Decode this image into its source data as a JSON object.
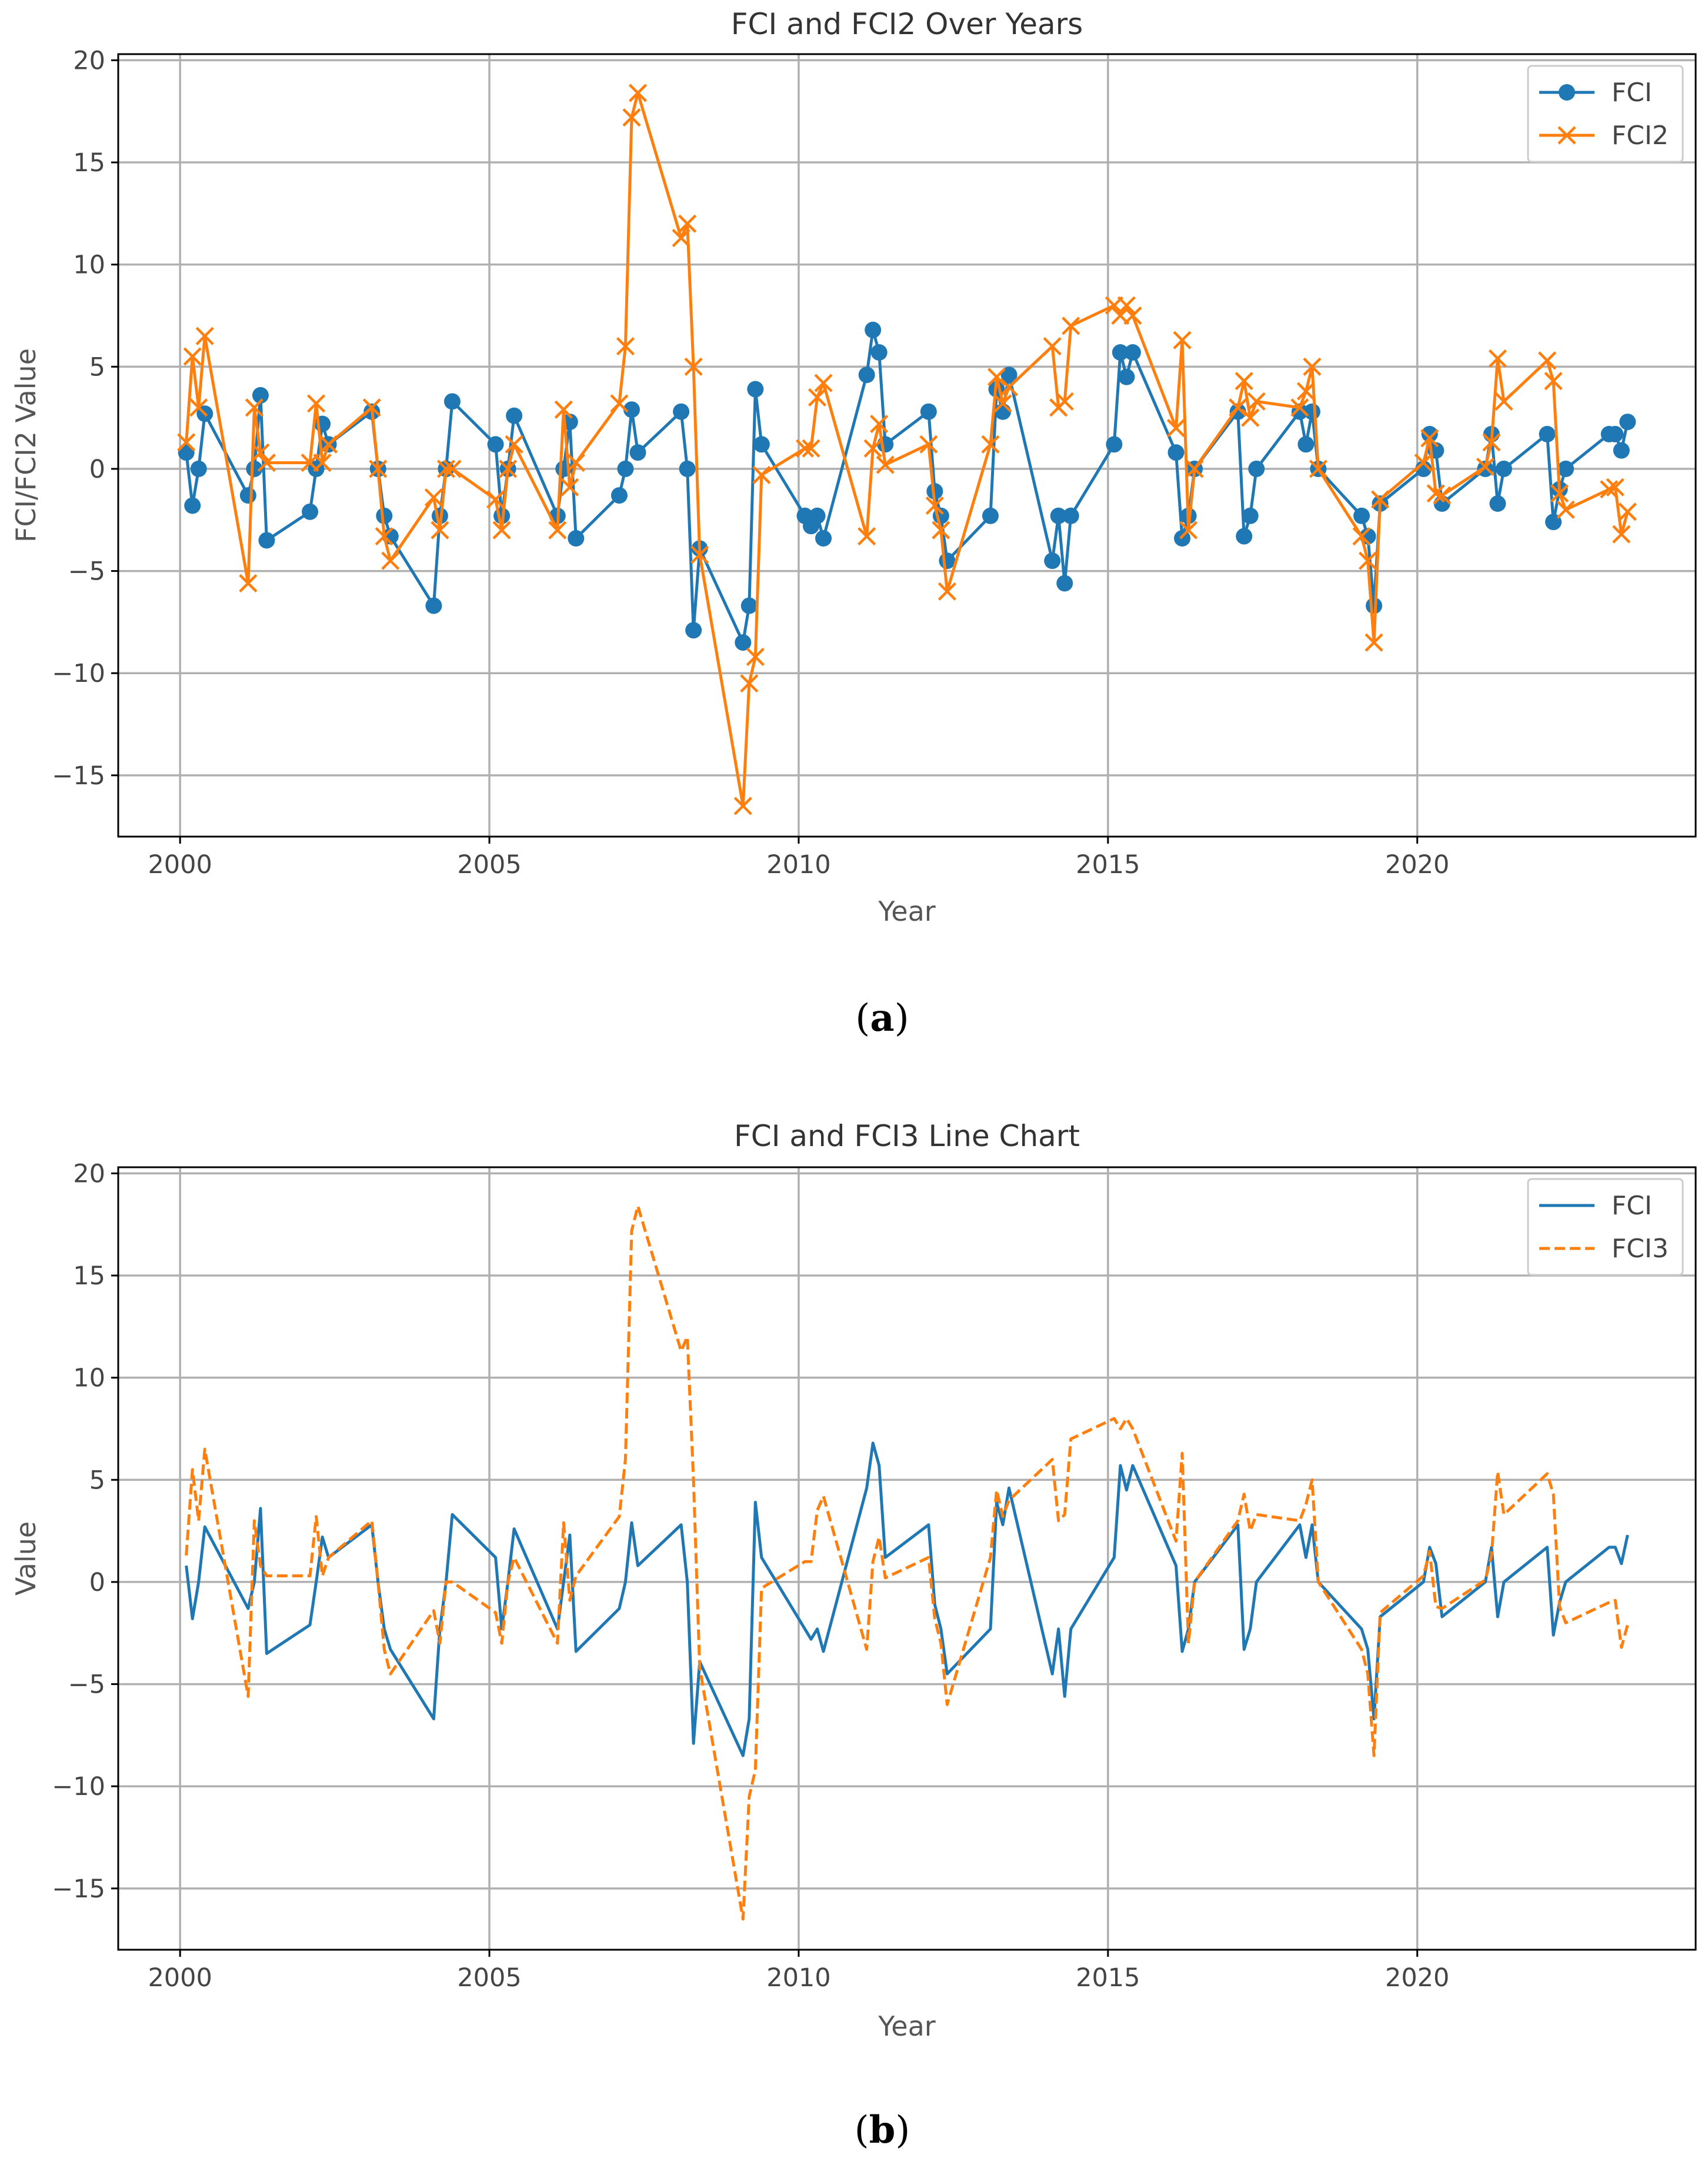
{
  "chart_data": [
    {
      "type": "line",
      "title": "FCI and FCI2 Over Years",
      "xlabel": "Year",
      "ylabel": "FCI/FCI2 Value",
      "xlim": [
        1999.0,
        2024.5
      ],
      "ylim": [
        -18.0,
        20.3
      ],
      "xticks": [
        2000,
        2005,
        2010,
        2015,
        2020
      ],
      "yticks": [
        -15,
        -10,
        -5,
        0,
        5,
        10,
        15,
        20
      ],
      "grid": true,
      "legend_position": "top-right",
      "caption_letter": "a",
      "series": [
        {
          "name": "FCI",
          "color": "#1f77b4",
          "marker": "circle",
          "linestyle": "solid",
          "x": [
            2000.1,
            2000.2,
            2000.3,
            2000.4,
            2001.1,
            2001.2,
            2001.3,
            2001.4,
            2002.1,
            2002.2,
            2002.3,
            2002.4,
            2003.1,
            2003.2,
            2003.3,
            2003.4,
            2004.1,
            2004.2,
            2004.3,
            2004.4,
            2005.1,
            2005.2,
            2005.3,
            2005.4,
            2006.1,
            2006.2,
            2006.3,
            2006.4,
            2007.1,
            2007.2,
            2007.3,
            2007.4,
            2008.1,
            2008.2,
            2008.3,
            2008.4,
            2009.1,
            2009.2,
            2009.3,
            2009.4,
            2010.1,
            2010.2,
            2010.3,
            2010.4,
            2011.1,
            2011.2,
            2011.3,
            2011.4,
            2012.1,
            2012.2,
            2012.3,
            2012.4,
            2013.1,
            2013.2,
            2013.3,
            2013.4,
            2014.1,
            2014.2,
            2014.3,
            2014.4,
            2015.1,
            2015.2,
            2015.3,
            2015.4,
            2016.1,
            2016.2,
            2016.3,
            2016.4,
            2017.1,
            2017.2,
            2017.3,
            2017.4,
            2018.1,
            2018.2,
            2018.3,
            2018.4,
            2019.1,
            2019.2,
            2019.3,
            2019.4,
            2020.1,
            2020.2,
            2020.3,
            2020.4,
            2021.1,
            2021.2,
            2021.3,
            2021.4,
            2022.1,
            2022.2,
            2022.3,
            2022.4,
            2023.1,
            2023.2,
            2023.3,
            2023.4
          ],
          "values": [
            0.8,
            -1.8,
            0.0,
            2.7,
            -1.3,
            0.0,
            3.6,
            -3.5,
            -2.1,
            0.0,
            2.2,
            1.2,
            2.8,
            0.0,
            -2.3,
            -3.3,
            -6.7,
            -2.3,
            0.0,
            3.3,
            1.2,
            -2.3,
            0.0,
            2.6,
            -2.3,
            0.0,
            2.3,
            -3.4,
            -1.3,
            0.0,
            2.9,
            0.8,
            2.8,
            0.0,
            -7.9,
            -3.9,
            -8.5,
            -6.7,
            3.9,
            1.2,
            -2.3,
            -2.8,
            -2.3,
            -3.4,
            4.6,
            6.8,
            5.7,
            1.2,
            2.8,
            -1.1,
            -2.3,
            -4.5,
            -2.3,
            3.9,
            2.8,
            4.6,
            -4.5,
            -2.3,
            -5.6,
            -2.3,
            1.2,
            5.7,
            4.5,
            5.7,
            0.8,
            -3.4,
            -2.3,
            0.0,
            2.8,
            -3.3,
            -2.3,
            0.0,
            2.8,
            1.2,
            2.8,
            0.0,
            -2.3,
            -3.3,
            -6.7,
            -1.7,
            0.0,
            1.7,
            0.9,
            -1.7,
            0.0,
            1.7,
            -1.7,
            0.0,
            1.7,
            -2.6,
            -1.0,
            0.0,
            1.7,
            1.7,
            0.9,
            2.3
          ]
        },
        {
          "name": "FCI2",
          "color": "#ff7f0e",
          "marker": "x",
          "linestyle": "solid",
          "x": [
            2000.1,
            2000.2,
            2000.3,
            2000.4,
            2001.1,
            2001.2,
            2001.3,
            2001.4,
            2002.1,
            2002.2,
            2002.3,
            2002.4,
            2003.1,
            2003.2,
            2003.3,
            2003.4,
            2004.1,
            2004.2,
            2004.3,
            2004.4,
            2005.1,
            2005.2,
            2005.3,
            2005.4,
            2006.1,
            2006.2,
            2006.3,
            2006.4,
            2007.1,
            2007.2,
            2007.3,
            2007.4,
            2008.1,
            2008.2,
            2008.3,
            2008.4,
            2009.1,
            2009.2,
            2009.3,
            2009.4,
            2010.1,
            2010.2,
            2010.3,
            2010.4,
            2011.1,
            2011.2,
            2011.3,
            2011.4,
            2012.1,
            2012.2,
            2012.3,
            2012.4,
            2013.1,
            2013.2,
            2013.3,
            2013.4,
            2014.1,
            2014.2,
            2014.3,
            2014.4,
            2015.1,
            2015.2,
            2015.3,
            2015.4,
            2016.1,
            2016.2,
            2016.3,
            2016.4,
            2017.1,
            2017.2,
            2017.3,
            2017.4,
            2018.1,
            2018.2,
            2018.3,
            2018.4,
            2019.1,
            2019.2,
            2019.3,
            2019.4,
            2020.1,
            2020.2,
            2020.3,
            2020.4,
            2021.1,
            2021.2,
            2021.3,
            2021.4,
            2022.1,
            2022.2,
            2022.3,
            2022.4,
            2023.1,
            2023.2,
            2023.3,
            2023.4
          ],
          "values": [
            1.3,
            5.5,
            3.0,
            6.5,
            -5.6,
            3.0,
            0.8,
            0.3,
            0.3,
            3.2,
            0.3,
            1.2,
            3.0,
            0.0,
            -3.3,
            -4.5,
            -1.4,
            -3.0,
            0.0,
            0.0,
            -1.5,
            -3.0,
            0.0,
            1.2,
            -3.0,
            2.9,
            -0.9,
            0.3,
            3.2,
            6.0,
            17.2,
            18.4,
            11.3,
            12.0,
            5.0,
            -4.2,
            -16.5,
            -10.5,
            -9.2,
            -0.3,
            1.0,
            1.0,
            3.5,
            4.2,
            -3.3,
            1.0,
            2.2,
            0.2,
            1.2,
            -1.8,
            -3.0,
            -6.0,
            1.2,
            4.5,
            3.2,
            4.0,
            6.0,
            3.0,
            3.3,
            7.0,
            8.0,
            7.5,
            8.0,
            7.5,
            2.0,
            6.3,
            -3.0,
            0.0,
            3.0,
            4.3,
            2.5,
            3.3,
            3.0,
            3.8,
            5.0,
            0.0,
            -3.3,
            -4.5,
            -8.5,
            -1.5,
            0.3,
            1.5,
            -1.2,
            -1.3,
            0.1,
            1.3,
            5.4,
            3.3,
            5.3,
            4.3,
            -1.2,
            -2.0,
            -1.0,
            -0.9,
            -3.2,
            -2.1
          ]
        }
      ]
    },
    {
      "type": "line",
      "title": "FCI and FCI3 Line Chart",
      "xlabel": "Year",
      "ylabel": "Value",
      "xlim": [
        1999.0,
        2024.5
      ],
      "ylim": [
        -18.0,
        20.3
      ],
      "xticks": [
        2000,
        2005,
        2010,
        2015,
        2020
      ],
      "yticks": [
        -15,
        -10,
        -5,
        0,
        5,
        10,
        15,
        20
      ],
      "grid": true,
      "legend_position": "top-right",
      "caption_letter": "b",
      "series": [
        {
          "name": "FCI",
          "color": "#1f77b4",
          "marker": "none",
          "linestyle": "solid",
          "x": [
            2000.1,
            2000.2,
            2000.3,
            2000.4,
            2001.1,
            2001.2,
            2001.3,
            2001.4,
            2002.1,
            2002.2,
            2002.3,
            2002.4,
            2003.1,
            2003.2,
            2003.3,
            2003.4,
            2004.1,
            2004.2,
            2004.3,
            2004.4,
            2005.1,
            2005.2,
            2005.3,
            2005.4,
            2006.1,
            2006.2,
            2006.3,
            2006.4,
            2007.1,
            2007.2,
            2007.3,
            2007.4,
            2008.1,
            2008.2,
            2008.3,
            2008.4,
            2009.1,
            2009.2,
            2009.3,
            2009.4,
            2010.1,
            2010.2,
            2010.3,
            2010.4,
            2011.1,
            2011.2,
            2011.3,
            2011.4,
            2012.1,
            2012.2,
            2012.3,
            2012.4,
            2013.1,
            2013.2,
            2013.3,
            2013.4,
            2014.1,
            2014.2,
            2014.3,
            2014.4,
            2015.1,
            2015.2,
            2015.3,
            2015.4,
            2016.1,
            2016.2,
            2016.3,
            2016.4,
            2017.1,
            2017.2,
            2017.3,
            2017.4,
            2018.1,
            2018.2,
            2018.3,
            2018.4,
            2019.1,
            2019.2,
            2019.3,
            2019.4,
            2020.1,
            2020.2,
            2020.3,
            2020.4,
            2021.1,
            2021.2,
            2021.3,
            2021.4,
            2022.1,
            2022.2,
            2022.3,
            2022.4,
            2023.1,
            2023.2,
            2023.3,
            2023.4
          ],
          "values": [
            0.8,
            -1.8,
            0.0,
            2.7,
            -1.3,
            0.0,
            3.6,
            -3.5,
            -2.1,
            0.0,
            2.2,
            1.2,
            2.8,
            0.0,
            -2.3,
            -3.3,
            -6.7,
            -2.3,
            0.0,
            3.3,
            1.2,
            -2.3,
            0.0,
            2.6,
            -2.3,
            0.0,
            2.3,
            -3.4,
            -1.3,
            0.0,
            2.9,
            0.8,
            2.8,
            0.0,
            -7.9,
            -3.9,
            -8.5,
            -6.7,
            3.9,
            1.2,
            -2.3,
            -2.8,
            -2.3,
            -3.4,
            4.6,
            6.8,
            5.7,
            1.2,
            2.8,
            -1.1,
            -2.3,
            -4.5,
            -2.3,
            3.9,
            2.8,
            4.6,
            -4.5,
            -2.3,
            -5.6,
            -2.3,
            1.2,
            5.7,
            4.5,
            5.7,
            0.8,
            -3.4,
            -2.3,
            0.0,
            2.8,
            -3.3,
            -2.3,
            0.0,
            2.8,
            1.2,
            2.8,
            0.0,
            -2.3,
            -3.3,
            -6.7,
            -1.7,
            0.0,
            1.7,
            0.9,
            -1.7,
            0.0,
            1.7,
            -1.7,
            0.0,
            1.7,
            -2.6,
            -1.0,
            0.0,
            1.7,
            1.7,
            0.9,
            2.3
          ]
        },
        {
          "name": "FCI3",
          "color": "#ff7f0e",
          "marker": "none",
          "linestyle": "dashed",
          "x": [
            2000.1,
            2000.2,
            2000.3,
            2000.4,
            2001.1,
            2001.2,
            2001.3,
            2001.4,
            2002.1,
            2002.2,
            2002.3,
            2002.4,
            2003.1,
            2003.2,
            2003.3,
            2003.4,
            2004.1,
            2004.2,
            2004.3,
            2004.4,
            2005.1,
            2005.2,
            2005.3,
            2005.4,
            2006.1,
            2006.2,
            2006.3,
            2006.4,
            2007.1,
            2007.2,
            2007.3,
            2007.4,
            2008.1,
            2008.2,
            2008.3,
            2008.4,
            2009.1,
            2009.2,
            2009.3,
            2009.4,
            2010.1,
            2010.2,
            2010.3,
            2010.4,
            2011.1,
            2011.2,
            2011.3,
            2011.4,
            2012.1,
            2012.2,
            2012.3,
            2012.4,
            2013.1,
            2013.2,
            2013.3,
            2013.4,
            2014.1,
            2014.2,
            2014.3,
            2014.4,
            2015.1,
            2015.2,
            2015.3,
            2015.4,
            2016.1,
            2016.2,
            2016.3,
            2016.4,
            2017.1,
            2017.2,
            2017.3,
            2017.4,
            2018.1,
            2018.2,
            2018.3,
            2018.4,
            2019.1,
            2019.2,
            2019.3,
            2019.4,
            2020.1,
            2020.2,
            2020.3,
            2020.4,
            2021.1,
            2021.2,
            2021.3,
            2021.4,
            2022.1,
            2022.2,
            2022.3,
            2022.4,
            2023.1,
            2023.2,
            2023.3,
            2023.4
          ],
          "values": [
            1.3,
            5.5,
            3.0,
            6.5,
            -5.6,
            3.0,
            0.8,
            0.3,
            0.3,
            3.2,
            0.3,
            1.2,
            3.0,
            0.0,
            -3.3,
            -4.5,
            -1.4,
            -3.0,
            0.0,
            0.0,
            -1.5,
            -3.0,
            0.0,
            1.2,
            -3.0,
            2.9,
            -0.9,
            0.3,
            3.2,
            6.0,
            17.2,
            18.4,
            11.3,
            12.0,
            5.0,
            -4.2,
            -16.5,
            -10.5,
            -9.2,
            -0.3,
            1.0,
            1.0,
            3.5,
            4.2,
            -3.3,
            1.0,
            2.2,
            0.2,
            1.2,
            -1.8,
            -3.0,
            -6.0,
            1.2,
            4.5,
            3.2,
            4.0,
            6.0,
            3.0,
            3.3,
            7.0,
            8.0,
            7.5,
            8.0,
            7.5,
            2.0,
            6.3,
            -3.0,
            0.0,
            3.0,
            4.3,
            2.5,
            3.3,
            3.0,
            3.8,
            5.0,
            0.0,
            -3.3,
            -4.5,
            -8.5,
            -1.5,
            0.3,
            1.5,
            -1.2,
            -1.3,
            0.1,
            1.3,
            5.4,
            3.3,
            5.3,
            4.3,
            -1.2,
            -2.0,
            -1.0,
            -0.9,
            -3.2,
            -2.1
          ]
        }
      ]
    }
  ]
}
